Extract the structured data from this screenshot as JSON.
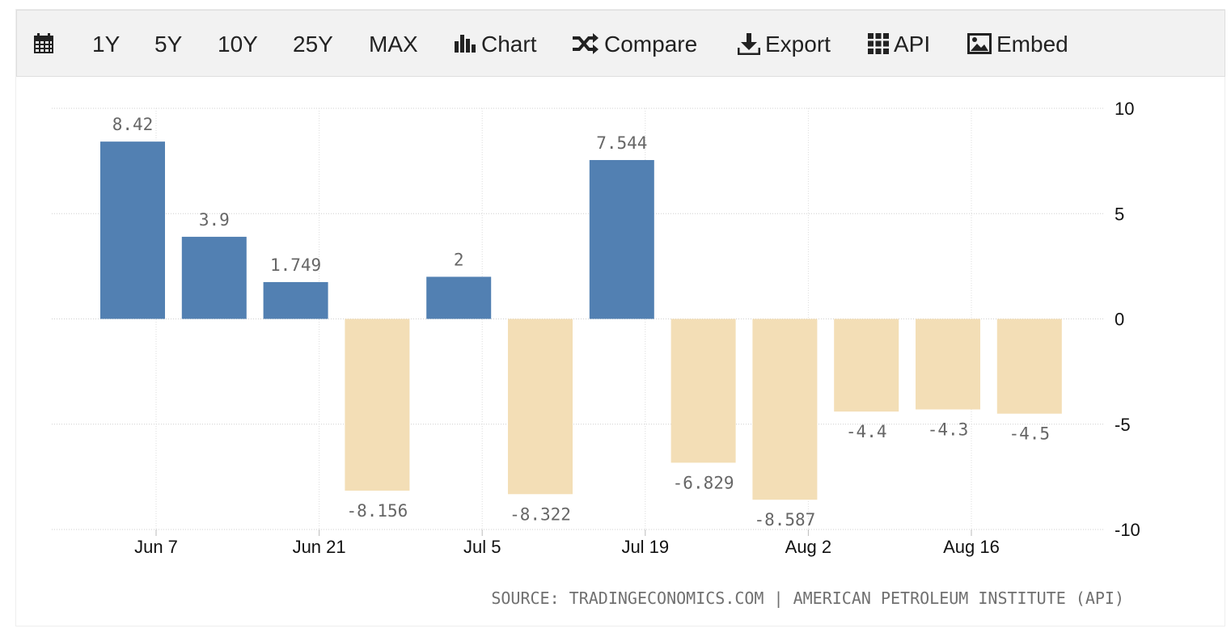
{
  "toolbar": {
    "items": [
      {
        "id": "calendar",
        "label": "",
        "icon": "calendar-icon"
      },
      {
        "id": "1y",
        "label": "1Y"
      },
      {
        "id": "5y",
        "label": "5Y"
      },
      {
        "id": "10y",
        "label": "10Y"
      },
      {
        "id": "25y",
        "label": "25Y"
      },
      {
        "id": "max",
        "label": "MAX"
      },
      {
        "id": "chart",
        "label": "Chart",
        "icon": "bar-chart-icon"
      },
      {
        "id": "compare",
        "label": "Compare",
        "icon": "shuffle-icon"
      },
      {
        "id": "export",
        "label": "Export",
        "icon": "download-icon"
      },
      {
        "id": "api",
        "label": "API",
        "icon": "grid-icon"
      },
      {
        "id": "embed",
        "label": "Embed",
        "icon": "image-icon"
      }
    ]
  },
  "chart_data": {
    "type": "bar",
    "title": "",
    "xlabel": "",
    "ylabel": "",
    "ylim": [
      -10,
      10
    ],
    "yticks": [
      10,
      5,
      0,
      -5,
      -10
    ],
    "axis_position": "right",
    "grid": true,
    "legend": "none",
    "positive_color": "#5280b2",
    "negative_color": "#f3deb6",
    "x_tick_labels": [
      "Jun 7",
      "Jun 21",
      "Jul 5",
      "Jul 19",
      "Aug 2",
      "Aug 16"
    ],
    "values": [
      8.42,
      3.9,
      1.749,
      -8.156,
      2,
      -8.322,
      7.544,
      -6.829,
      -8.587,
      -4.4,
      -4.3,
      -4.5
    ],
    "value_labels": [
      "8.42",
      "3.9",
      "1.749",
      "-8.156",
      "2",
      "-8.322",
      "7.544",
      "-6.829",
      "-8.587",
      "-4.4",
      "-4.3",
      "-4.5"
    ]
  },
  "source": "SOURCE: TRADINGECONOMICS.COM | AMERICAN PETROLEUM INSTITUTE (API)"
}
